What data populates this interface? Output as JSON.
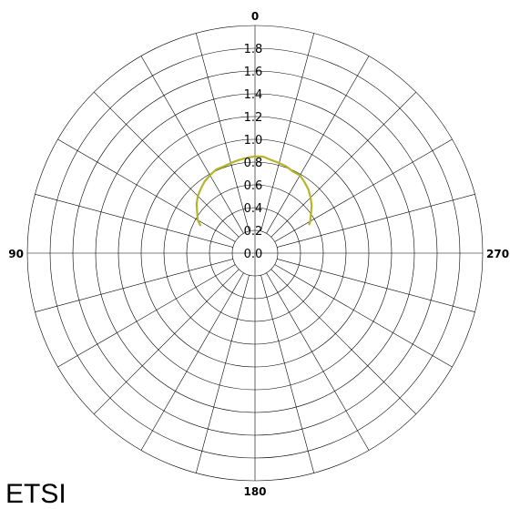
{
  "chart_data": {
    "type": "polar",
    "angle_labels": [
      {
        "angle": 0,
        "text": "0"
      },
      {
        "angle": 90,
        "text": "90"
      },
      {
        "angle": 180,
        "text": "180"
      },
      {
        "angle": 270,
        "text": "270"
      }
    ],
    "radial_ticks": [
      0.0,
      0.2,
      0.4,
      0.6,
      0.8,
      1.0,
      1.2,
      1.4,
      1.6,
      1.8
    ],
    "radial_tick_labels": [
      "0.0",
      "0.2",
      "0.4",
      "0.6",
      "0.8",
      "1.0",
      "1.2",
      "1.4",
      "1.6",
      "1.8"
    ],
    "rlim": [
      0,
      2.0
    ],
    "angular_grid_step_deg": 15,
    "angle_direction": "counterclockwise",
    "zero_at": "top",
    "series": [
      {
        "color": "#b5b42a",
        "points": [
          {
            "angle": -62,
            "r": 0.54
          },
          {
            "angle": -60,
            "r": 0.56
          },
          {
            "angle": -55,
            "r": 0.6
          },
          {
            "angle": -50,
            "r": 0.65
          },
          {
            "angle": -45,
            "r": 0.69
          },
          {
            "angle": -40,
            "r": 0.73
          },
          {
            "angle": -35,
            "r": 0.76
          },
          {
            "angle": -30,
            "r": 0.79
          },
          {
            "angle": -25,
            "r": 0.79
          },
          {
            "angle": -20,
            "r": 0.81
          },
          {
            "angle": -15,
            "r": 0.82
          },
          {
            "angle": -10,
            "r": 0.83
          },
          {
            "angle": -5,
            "r": 0.85
          },
          {
            "angle": 0,
            "r": 0.85
          },
          {
            "angle": 5,
            "r": 0.84
          },
          {
            "angle": 10,
            "r": 0.83
          },
          {
            "angle": 15,
            "r": 0.82
          },
          {
            "angle": 20,
            "r": 0.81
          },
          {
            "angle": 25,
            "r": 0.81
          },
          {
            "angle": 30,
            "r": 0.79
          },
          {
            "angle": 35,
            "r": 0.77
          },
          {
            "angle": 40,
            "r": 0.74
          },
          {
            "angle": 45,
            "r": 0.71
          },
          {
            "angle": 50,
            "r": 0.67
          },
          {
            "angle": 55,
            "r": 0.62
          },
          {
            "angle": 60,
            "r": 0.58
          },
          {
            "angle": 63,
            "r": 0.54
          }
        ]
      }
    ]
  },
  "footer_text": "ETSI"
}
